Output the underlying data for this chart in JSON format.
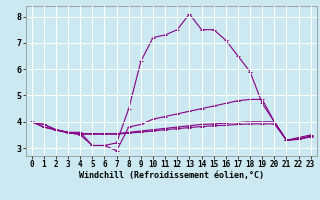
{
  "background_color": "#cce8f0",
  "grid_color": "#ffffff",
  "line_color": "#880088",
  "xlabel": "Windchill (Refroidissement éolien,°C)",
  "x_ticks": [
    0,
    1,
    2,
    3,
    4,
    5,
    6,
    7,
    8,
    9,
    10,
    11,
    12,
    13,
    14,
    15,
    16,
    17,
    18,
    19,
    20,
    21,
    22,
    23
  ],
  "y_ticks": [
    3,
    4,
    5,
    6,
    7,
    8
  ],
  "ylim": [
    2.7,
    8.4
  ],
  "xlim": [
    -0.5,
    23.5
  ],
  "lines": [
    [
      4.0,
      3.9,
      3.7,
      3.6,
      3.6,
      3.1,
      3.1,
      3.2,
      4.5,
      6.3,
      7.2,
      7.3,
      7.5,
      8.1,
      7.5,
      7.5,
      7.1,
      6.5,
      5.9,
      4.7,
      4.0,
      3.3,
      3.4,
      3.5
    ],
    [
      4.0,
      3.9,
      3.7,
      3.6,
      3.5,
      3.1,
      3.1,
      2.9,
      3.8,
      3.9,
      4.1,
      4.2,
      4.3,
      4.4,
      4.5,
      4.6,
      4.7,
      4.8,
      4.85,
      4.85,
      4.0,
      3.3,
      3.35,
      3.45
    ],
    [
      4.0,
      3.8,
      3.7,
      3.6,
      3.55,
      3.55,
      3.55,
      3.55,
      3.6,
      3.65,
      3.7,
      3.75,
      3.8,
      3.85,
      3.9,
      3.92,
      3.95,
      3.97,
      4.0,
      4.0,
      4.0,
      3.3,
      3.35,
      3.45
    ],
    [
      4.0,
      3.8,
      3.68,
      3.58,
      3.53,
      3.53,
      3.53,
      3.53,
      3.57,
      3.61,
      3.65,
      3.7,
      3.74,
      3.78,
      3.82,
      3.85,
      3.87,
      3.9,
      3.92,
      3.92,
      3.92,
      3.3,
      3.33,
      3.43
    ]
  ],
  "marker": "+",
  "markersize": 3,
  "linewidth": 0.8,
  "tick_fontsize": 5.5,
  "xlabel_fontsize": 6.0,
  "spine_color": "#888888"
}
